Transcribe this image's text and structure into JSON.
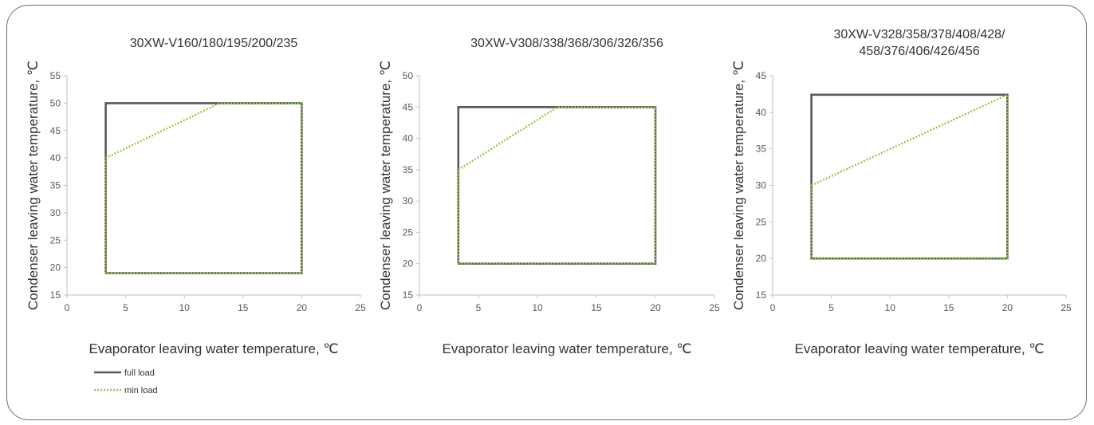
{
  "legend": {
    "items": [
      {
        "label": "full load",
        "color": "#595959",
        "dash": "solid"
      },
      {
        "label": "min load",
        "color": "#8cc63f",
        "dash": "dotted"
      }
    ]
  },
  "chart_data": [
    {
      "type": "line",
      "title": [
        "30XW-V160/180/195/200/235"
      ],
      "xlabel": "Evaporator leaving water temperature, ℃",
      "ylabel": "Condenser leaving water temperature, ℃",
      "xlim": [
        0,
        25
      ],
      "ylim": [
        15,
        55
      ],
      "xticks": [
        0,
        5,
        10,
        15,
        20,
        25
      ],
      "yticks": [
        15,
        20,
        25,
        30,
        35,
        40,
        45,
        50,
        55
      ],
      "series": [
        {
          "name": "full load",
          "color": "#595959",
          "x": [
            3.3,
            3.3,
            20,
            20,
            3.3,
            3.3
          ],
          "y": [
            19,
            50,
            50,
            19,
            19,
            50
          ]
        },
        {
          "name": "min load",
          "color": "#8cc63f",
          "x": [
            3.3,
            13,
            20,
            20,
            3.3,
            3.3
          ],
          "y": [
            40,
            50,
            50,
            19,
            19,
            40
          ]
        }
      ]
    },
    {
      "type": "line",
      "title": [
        "30XW-V308/338/368/306/326/356"
      ],
      "xlabel": "Evaporator leaving water temperature, ℃",
      "ylabel": "Condenser leaving water temperature, ℃",
      "xlim": [
        0,
        25
      ],
      "ylim": [
        15,
        50
      ],
      "xticks": [
        0,
        5,
        10,
        15,
        20,
        25
      ],
      "yticks": [
        15,
        20,
        25,
        30,
        35,
        40,
        45,
        50
      ],
      "series": [
        {
          "name": "full load",
          "color": "#595959",
          "x": [
            3.3,
            3.3,
            20,
            20,
            3.3,
            3.3
          ],
          "y": [
            20,
            45,
            45,
            20,
            20,
            45
          ]
        },
        {
          "name": "min load",
          "color": "#8cc63f",
          "x": [
            3.3,
            11.7,
            20,
            20,
            3.3,
            3.3
          ],
          "y": [
            35,
            45,
            45,
            20,
            20,
            35
          ]
        }
      ]
    },
    {
      "type": "line",
      "title": [
        "30XW-V328/358/378/408/428/",
        "458/376/406/426/456"
      ],
      "xlabel": "Evaporator leaving water temperature, ℃",
      "ylabel": "Condenser leaving water temperature, ℃",
      "xlim": [
        0,
        25
      ],
      "ylim": [
        15,
        45
      ],
      "xticks": [
        0,
        5,
        10,
        15,
        20,
        25
      ],
      "yticks": [
        15,
        20,
        25,
        30,
        35,
        40,
        45
      ],
      "series": [
        {
          "name": "full load",
          "color": "#595959",
          "x": [
            3.3,
            3.3,
            20,
            20,
            3.3,
            3.3
          ],
          "y": [
            20,
            42.4,
            42.4,
            20,
            20,
            42.4
          ]
        },
        {
          "name": "min load",
          "color": "#8cc63f",
          "x": [
            3.3,
            20,
            20,
            3.3,
            3.3
          ],
          "y": [
            30,
            42.4,
            20,
            20,
            30
          ]
        }
      ]
    }
  ]
}
